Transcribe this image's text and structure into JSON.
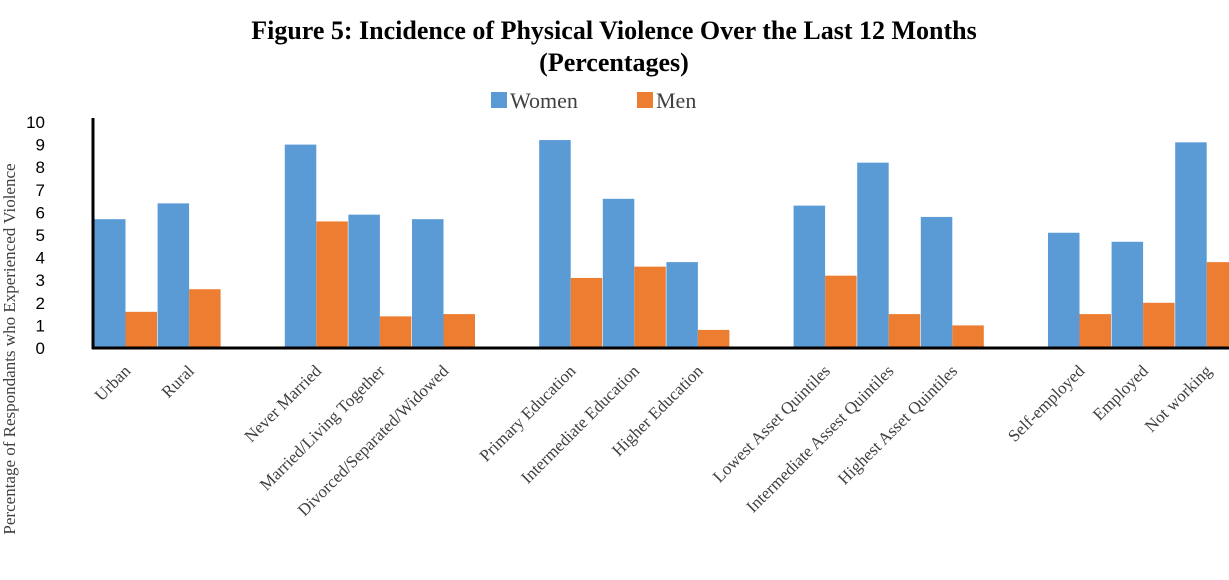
{
  "chart_data": {
    "type": "bar",
    "title_line1": "Figure 5: Incidence of Physical Violence Over the Last 12 Months",
    "title_line2": "(Percentages)",
    "ylabel": "Percentage of Respondants who Experienced Violence",
    "xlabel": "",
    "ylim": [
      0,
      10
    ],
    "yticks": [
      "0",
      "1",
      "2",
      "3",
      "4",
      "5",
      "6",
      "7",
      "8",
      "9",
      "10"
    ],
    "grid": false,
    "legend_position": "top-center",
    "categories": [
      "Urban",
      "Rural",
      "",
      "Never Married",
      "Married/Living Together",
      "Divorced/Separated/Widowed",
      "",
      "Primary Education",
      "Intermediate Education",
      "Higher Education",
      "",
      "Lowest Asset Quintiles",
      "Intermediate Assest Quintiles",
      "Highest Asset Quintiles",
      "",
      "Self-employed",
      "Employed",
      "Not working"
    ],
    "series": [
      {
        "name": "Women",
        "color": "#5B9BD5",
        "values": [
          5.7,
          6.4,
          null,
          9.0,
          5.9,
          5.7,
          null,
          9.2,
          6.6,
          3.8,
          null,
          6.3,
          8.2,
          5.8,
          null,
          5.1,
          4.7,
          9.1
        ]
      },
      {
        "name": "Men",
        "color": "#ED7D31",
        "values": [
          1.6,
          2.6,
          null,
          5.6,
          1.4,
          1.5,
          null,
          3.1,
          3.6,
          0.8,
          null,
          3.2,
          1.5,
          1.0,
          null,
          1.5,
          2.0,
          3.8
        ]
      }
    ]
  }
}
